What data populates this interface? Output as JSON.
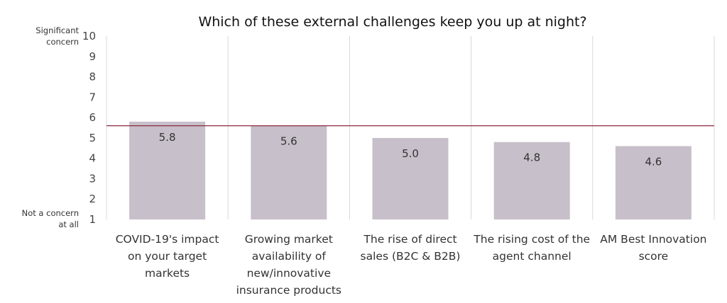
{
  "chart_data": {
    "type": "bar",
    "title": "Which of these external challenges keep you up at night?",
    "categories": [
      "COVID-19's impact on your target markets",
      "Growing market availability of new/innovative insurance products",
      "The rise of direct sales (B2C & B2B)",
      "The rising cost of the agent channel",
      "AM Best Innovation score"
    ],
    "category_lines": [
      [
        "COVID-19's impact",
        "on your target",
        "markets"
      ],
      [
        "Growing market",
        "availability of",
        "new/innovative",
        "insurance products"
      ],
      [
        "The rise of direct",
        "sales (B2C & B2B)"
      ],
      [
        "The rising cost of the",
        "agent channel"
      ],
      [
        "AM Best Innovation",
        "score"
      ]
    ],
    "values": [
      5.8,
      5.6,
      5.0,
      4.8,
      4.6
    ],
    "value_labels": [
      "5.8",
      "5.6",
      "5.0",
      "4.8",
      "4.6"
    ],
    "reference_line": 5.6,
    "ylim": [
      1,
      10
    ],
    "yticks": [
      "1",
      "2",
      "3",
      "4",
      "5",
      "6",
      "7",
      "8",
      "9",
      "10"
    ],
    "y_top_label": [
      "Significant",
      "concern"
    ],
    "y_bottom_label": [
      "Not a concern",
      "at all"
    ],
    "grid": "vertical separators",
    "legend": "none",
    "colors": {
      "bar": "#c7bfc9",
      "reference_line": "#8b2a3f",
      "separator": "#d9d9d9"
    }
  }
}
